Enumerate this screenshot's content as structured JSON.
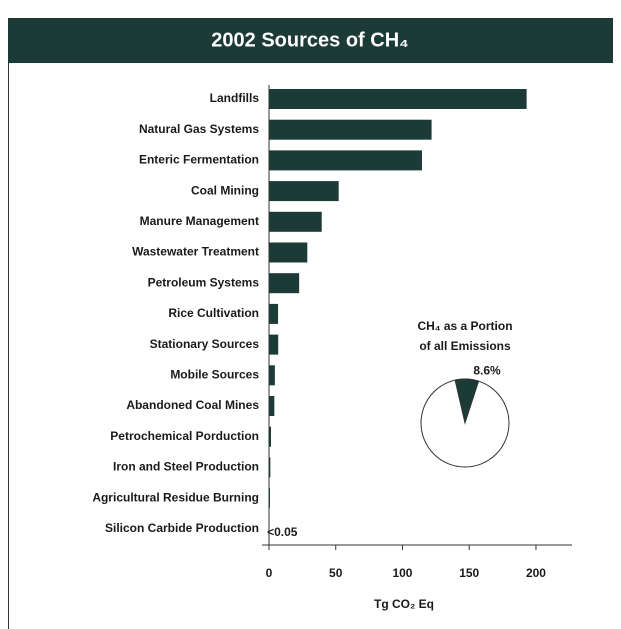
{
  "chart_data": [
    {
      "type": "barh",
      "title": "2002 Sources of CH₄",
      "categories": [
        "Landfills",
        "Natural Gas Systems",
        "Enteric Fermentation",
        "Coal Mining",
        "Manure Management",
        "Wastewater Treatment",
        "Petroleum Systems",
        "Rice Cultivation",
        "Stationary Sources",
        "Mobile Sources",
        "Abandoned Coal Mines",
        "Petrochemical Porduction",
        "Iron and Steel Production",
        "Agricultural Residue Burning",
        "Silicon Carbide Production"
      ],
      "values": [
        193.0,
        121.8,
        114.6,
        52.2,
        39.5,
        28.7,
        22.6,
        6.8,
        6.9,
        4.4,
        4.0,
        1.5,
        1.0,
        0.7,
        0.05
      ],
      "value_labels": [
        null,
        null,
        null,
        null,
        null,
        null,
        null,
        null,
        null,
        null,
        null,
        null,
        null,
        null,
        "<0.05"
      ],
      "color": "#1c3a36",
      "xlabel": "Tg CO₂ Eq",
      "xlim": [
        0,
        227
      ],
      "xticks": [
        0,
        50,
        100,
        150,
        200
      ]
    },
    {
      "type": "pie",
      "title_lines": [
        "CH₄ as a Portion",
        "of all Emissions"
      ],
      "values": [
        8.6
      ],
      "value_labels": [
        "8.6%"
      ],
      "color": "#1c3a36"
    }
  ]
}
